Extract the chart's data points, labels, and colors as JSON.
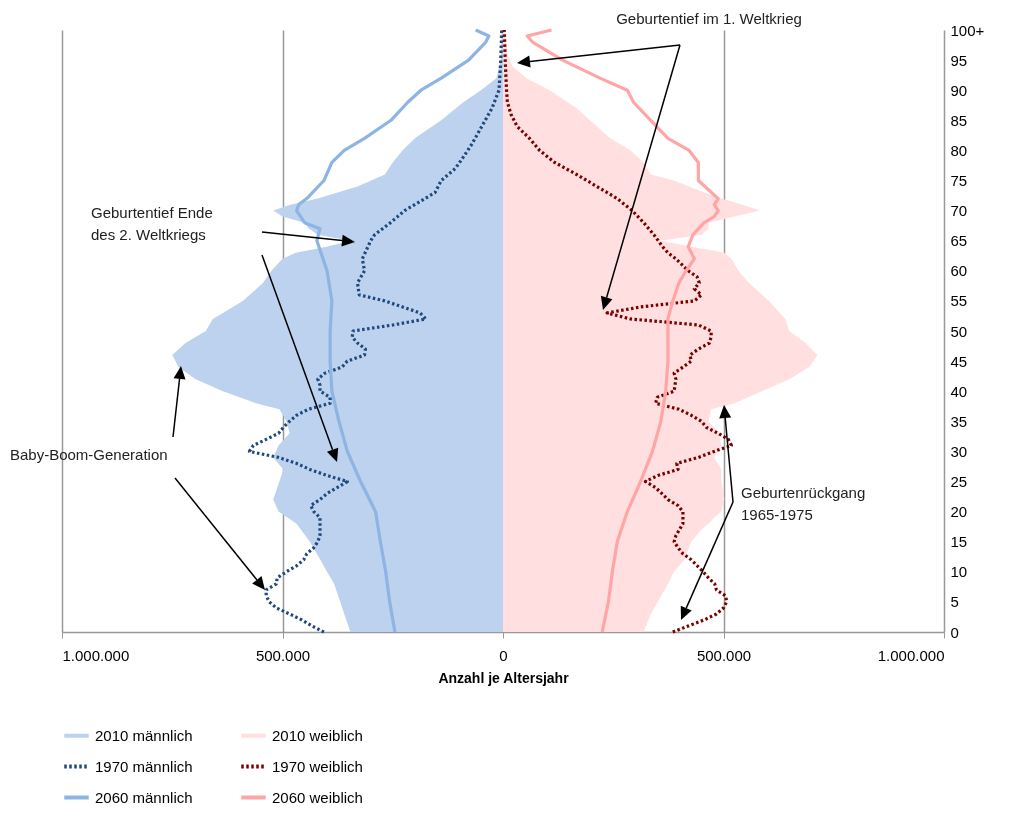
{
  "chart_data": {
    "type": "line",
    "orientation": "horizontal",
    "xlabel": "Anzahl je Altersjahr",
    "xlim": [
      -1000000,
      1000000
    ],
    "xticks": [
      {
        "value": -1000000,
        "label": "1.000.000"
      },
      {
        "value": -500000,
        "label": "500.000"
      },
      0,
      {
        "value": 500000,
        "label": "500.000"
      },
      {
        "value": 1000000,
        "label": "1.000.000"
      }
    ],
    "ylim": [
      0,
      100
    ],
    "yticks": [
      0,
      5,
      10,
      15,
      20,
      25,
      30,
      35,
      40,
      45,
      50,
      55,
      60,
      65,
      70,
      75,
      80,
      85,
      90,
      95,
      {
        "value": 100,
        "label": "100+"
      }
    ],
    "grid": "x",
    "legend": "bottom",
    "annotations": [
      "Geburtentief im 1. Weltkrieg",
      "Geburtentief Ende\ndes 2. Weltkriegs",
      "Baby-Boom-Generation",
      "Geburtenrückgang\n1965-1975"
    ],
    "series": [
      {
        "name": "2010 männlich",
        "type": "area",
        "color": "#bcd2ee",
        "x": [
          0,
          3,
          5,
          8,
          10,
          13,
          15,
          18,
          20,
          22,
          25,
          27,
          29,
          31,
          33,
          35,
          37,
          38,
          40,
          42,
          44,
          46,
          48,
          50,
          52,
          55,
          58,
          60,
          62,
          63,
          64,
          65,
          66,
          67,
          68,
          69,
          70,
          71,
          72,
          74,
          76,
          78,
          80,
          82,
          85,
          88,
          90,
          92,
          95,
          100
        ],
        "values": [
          -346000,
          -360000,
          -369000,
          -383000,
          -399000,
          -422000,
          -438000,
          -468000,
          -509000,
          -521000,
          -507000,
          -498000,
          -521000,
          -509000,
          -484000,
          -491000,
          -507000,
          -560000,
          -635000,
          -697000,
          -736000,
          -750000,
          -720000,
          -674000,
          -658000,
          -590000,
          -544000,
          -525000,
          -500000,
          -470000,
          -400000,
          -346000,
          -420000,
          -440000,
          -450000,
          -500000,
          -521000,
          -480000,
          -420000,
          -330000,
          -268000,
          -250000,
          -228000,
          -200000,
          -140000,
          -90000,
          -50000,
          -15000,
          -5000,
          -3000
        ]
      },
      {
        "name": "2010 weiblich",
        "type": "area",
        "color": "#ffdfdf",
        "x": [
          0,
          3,
          5,
          8,
          10,
          12,
          15,
          17,
          18,
          19,
          20,
          22,
          25,
          27,
          29,
          31,
          33,
          35,
          37,
          38,
          40,
          42,
          44,
          46,
          48,
          50,
          52,
          55,
          58,
          60,
          62,
          63,
          64,
          65,
          66,
          67,
          68,
          69,
          70,
          71,
          72,
          73,
          75,
          76,
          78,
          80,
          82,
          85,
          87,
          90,
          92,
          94,
          96,
          100
        ],
        "values": [
          319000,
          335000,
          351000,
          374000,
          388000,
          411000,
          427000,
          450000,
          466000,
          479000,
          495000,
          502000,
          495000,
          495000,
          479000,
          495000,
          490000,
          466000,
          472000,
          525000,
          587000,
          649000,
          695000,
          713000,
          686000,
          649000,
          640000,
          603000,
          557000,
          534000,
          518000,
          502000,
          427000,
          358000,
          450000,
          466000,
          466000,
          525000,
          583000,
          541000,
          495000,
          456000,
          388000,
          335000,
          319000,
          289000,
          243000,
          197000,
          167000,
          106000,
          53000,
          21000,
          10000,
          5000
        ]
      },
      {
        "name": "1970 männlich",
        "line_style": "dotted",
        "color": "#1f497d",
        "x": [
          0,
          1,
          2,
          3,
          4,
          5,
          6,
          7,
          8,
          9,
          10,
          11,
          12,
          13,
          14,
          15,
          16,
          17,
          18,
          19,
          20,
          21,
          22,
          23,
          24,
          25,
          26,
          27,
          28,
          29,
          30,
          31,
          32,
          33,
          34,
          35,
          36,
          37,
          38,
          39,
          40,
          41,
          42,
          43,
          44,
          45,
          46,
          47,
          48,
          49,
          50,
          51,
          52,
          53,
          55,
          56,
          58,
          60,
          62,
          65,
          66,
          67,
          68,
          70,
          71,
          73,
          75,
          77,
          79,
          81,
          84,
          87,
          90,
          95,
          100
        ],
        "values": [
          -406000,
          -433000,
          -456000,
          -484000,
          -514000,
          -530000,
          -537000,
          -537000,
          -514000,
          -512000,
          -491000,
          -468000,
          -452000,
          -445000,
          -429000,
          -420000,
          -415000,
          -415000,
          -415000,
          -415000,
          -429000,
          -436000,
          -415000,
          -399000,
          -376000,
          -353000,
          -399000,
          -438000,
          -468000,
          -509000,
          -575000,
          -566000,
          -537000,
          -509000,
          -498000,
          -484000,
          -468000,
          -441000,
          -392000,
          -392000,
          -415000,
          -415000,
          -420000,
          -404000,
          -365000,
          -353000,
          -314000,
          -312000,
          -330000,
          -342000,
          -340000,
          -250000,
          -175000,
          -188000,
          -268000,
          -326000,
          -330000,
          -314000,
          -319000,
          -300000,
          -291000,
          -273000,
          -255000,
          -223000,
          -200000,
          -154000,
          -140000,
          -108000,
          -89000,
          -71000,
          -48000,
          -25000,
          -9000,
          -5000,
          -3000
        ]
      },
      {
        "name": "1970 weiblich",
        "line_style": "dotted",
        "color": "#7a0000",
        "x": [
          0,
          1,
          2,
          3,
          4,
          5,
          6,
          7,
          8,
          9,
          10,
          12,
          13,
          14,
          15,
          16,
          18,
          20,
          21,
          22,
          24,
          25,
          26,
          27,
          28,
          29,
          30,
          31,
          32,
          33,
          34,
          35,
          36,
          37,
          38,
          39,
          40,
          41,
          42,
          43,
          44,
          45,
          46,
          47,
          48,
          49,
          50,
          51,
          52,
          53,
          54,
          55,
          56,
          57,
          58,
          59,
          60,
          62,
          63,
          64,
          66,
          68,
          70,
          72,
          74,
          76,
          78,
          80,
          82,
          84,
          86,
          88,
          90,
          95,
          100
        ],
        "values": [
          385000,
          420000,
          456000,
          484000,
          500000,
          507000,
          505000,
          484000,
          480000,
          466000,
          454000,
          427000,
          408000,
          397000,
          388000,
          392000,
          408000,
          408000,
          397000,
          374000,
          346000,
          323000,
          351000,
          397000,
          394000,
          443000,
          479000,
          518000,
          511000,
          488000,
          461000,
          450000,
          427000,
          399000,
          346000,
          350000,
          388000,
          390000,
          392000,
          388000,
          408000,
          427000,
          424000,
          443000,
          468000,
          472000,
          472000,
          443000,
          289000,
          236000,
          312000,
          434000,
          450000,
          434000,
          445000,
          440000,
          420000,
          392000,
          374000,
          362000,
          342000,
          319000,
          293000,
          259000,
          213000,
          167000,
          117000,
          83000,
          60000,
          32000,
          18000,
          10000,
          8000,
          5000,
          3000
        ]
      },
      {
        "name": "2060 männlich",
        "line_style": "solid",
        "color": "#8db4e2",
        "x": [
          0,
          5,
          10,
          15,
          20,
          25,
          30,
          35,
          40,
          45,
          50,
          55,
          60,
          65,
          67,
          68,
          70,
          71,
          72,
          75,
          78,
          80,
          82,
          85,
          88,
          90,
          92,
          95,
          98,
          99,
          100
        ],
        "values": [
          -245000,
          -257000,
          -266000,
          -278000,
          -289000,
          -323000,
          -353000,
          -372000,
          -388000,
          -392000,
          -392000,
          -388000,
          -399000,
          -422000,
          -415000,
          -450000,
          -468000,
          -463000,
          -445000,
          -406000,
          -388000,
          -360000,
          -314000,
          -254000,
          -216000,
          -186000,
          -140000,
          -78000,
          -39000,
          -32000,
          -62000
        ]
      },
      {
        "name": "2060 weiblich",
        "line_style": "solid",
        "color": "#ffa5a5",
        "x": [
          0,
          5,
          10,
          15,
          20,
          25,
          30,
          35,
          40,
          45,
          50,
          52,
          55,
          58,
          60,
          62,
          64,
          66,
          68,
          69,
          70,
          71,
          72,
          75,
          78,
          80,
          82,
          85,
          88,
          90,
          92,
          95,
          98,
          99,
          100
        ],
        "values": [
          225000,
          239000,
          248000,
          259000,
          282000,
          312000,
          339000,
          358000,
          369000,
          374000,
          374000,
          374000,
          385000,
          399000,
          415000,
          434000,
          420000,
          431000,
          456000,
          479000,
          488000,
          479000,
          488000,
          443000,
          443000,
          422000,
          374000,
          335000,
          296000,
          282000,
          220000,
          135000,
          67000,
          55000,
          110000
        ]
      }
    ]
  }
}
